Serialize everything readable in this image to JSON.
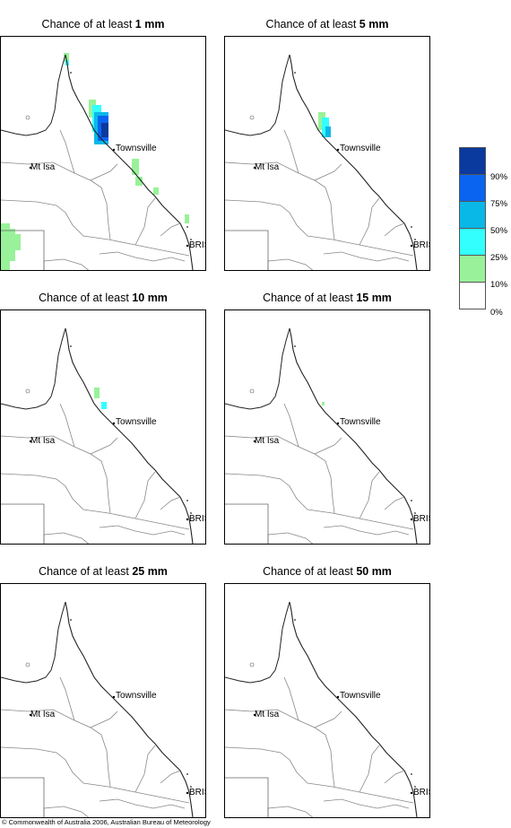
{
  "panels": [
    {
      "title_prefix": "Chance of at least ",
      "amount": "1 mm"
    },
    {
      "title_prefix": "Chance of at least ",
      "amount": "5 mm"
    },
    {
      "title_prefix": "Chance of at least ",
      "amount": "10 mm"
    },
    {
      "title_prefix": "Chance of at least ",
      "amount": "15 mm"
    },
    {
      "title_prefix": "Chance of at least ",
      "amount": "25 mm"
    },
    {
      "title_prefix": "Chance of at least ",
      "amount": "50 mm"
    }
  ],
  "places": {
    "townsville": "Townsville",
    "mt_isa": "Mt Isa",
    "brisbane": "BRIS"
  },
  "legend": {
    "labels": [
      "90%",
      "75%",
      "50%",
      "25%",
      "10%",
      "0%"
    ],
    "colors": [
      "#0a3a9e",
      "#0a64f0",
      "#0ab8e8",
      "#33ffff",
      "#99f299",
      "#ffffff"
    ]
  },
  "copyright": "© Commonwealth of Australia 2006, Australian Bureau of Meteorology"
}
